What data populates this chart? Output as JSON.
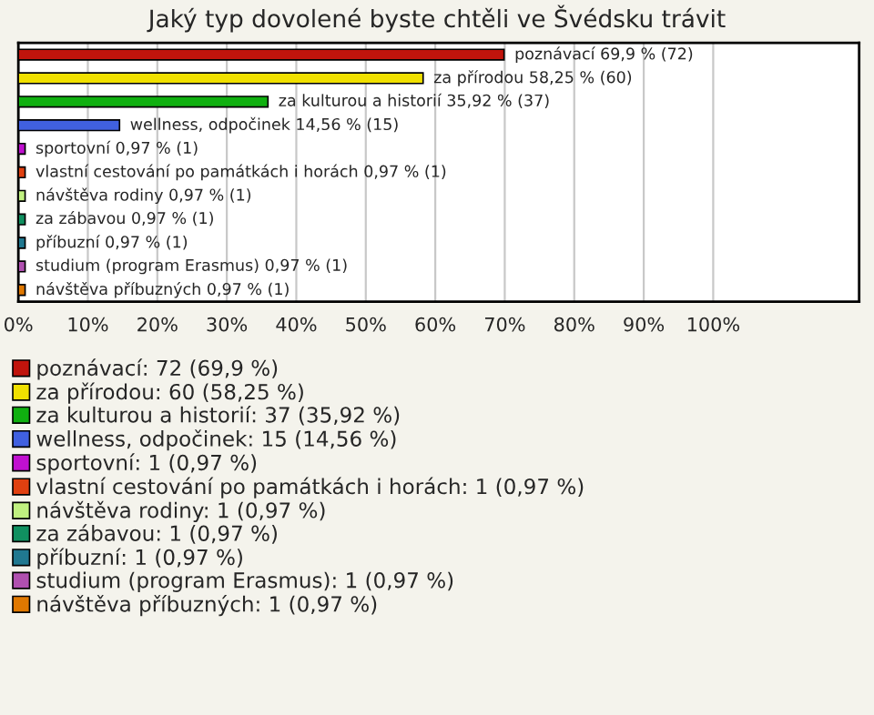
{
  "chart_data": {
    "type": "bar",
    "orientation": "horizontal",
    "title": "Jaký typ dovolené byste chtěli ve Švédsku trávit",
    "categories": [
      null,
      null,
      null,
      null,
      null,
      null,
      null,
      null,
      null,
      null,
      null
    ],
    "series": [
      {
        "name": "poznávací: 72 (69,9 %)",
        "color": "#c0140c",
        "values": [
          69.9,
          null,
          null,
          null,
          null,
          null,
          null,
          null,
          null,
          null,
          null
        ],
        "value_labels": [
          "poznávací 69,9 % (72)",
          null,
          null,
          null,
          null,
          null,
          null,
          null,
          null,
          null,
          null
        ]
      },
      {
        "name": "za přírodou: 60 (58,25 %)",
        "color": "#f0e000",
        "values": [
          null,
          58.25,
          null,
          null,
          null,
          null,
          null,
          null,
          null,
          null,
          null
        ],
        "value_labels": [
          null,
          "za přírodou 58,25 % (60)",
          null,
          null,
          null,
          null,
          null,
          null,
          null,
          null,
          null
        ]
      },
      {
        "name": "za kulturou a historií: 37 (35,92 %)",
        "color": "#10b010",
        "values": [
          null,
          null,
          35.92,
          null,
          null,
          null,
          null,
          null,
          null,
          null,
          null
        ],
        "value_labels": [
          null,
          null,
          "za kulturou a historií 35,92 % (37)",
          null,
          null,
          null,
          null,
          null,
          null,
          null,
          null
        ]
      },
      {
        "name": "wellness, odpočinek: 15 (14,56 %)",
        "color": "#4060e0",
        "values": [
          null,
          null,
          null,
          14.56,
          null,
          null,
          null,
          null,
          null,
          null,
          null
        ],
        "value_labels": [
          null,
          null,
          null,
          "wellness, odpočinek 14,56 % (15)",
          null,
          null,
          null,
          null,
          null,
          null,
          null
        ]
      },
      {
        "name": "sportovní: 1 (0,97 %)",
        "color": "#c010d0",
        "values": [
          null,
          null,
          null,
          null,
          0.97,
          null,
          null,
          null,
          null,
          null,
          null
        ],
        "value_labels": [
          null,
          null,
          null,
          null,
          "sportovní 0,97 % (1)",
          null,
          null,
          null,
          null,
          null,
          null
        ]
      },
      {
        "name": "vlastní cestování po památkách i horách: 1 (0,97 %)",
        "color": "#e04010",
        "values": [
          null,
          null,
          null,
          null,
          null,
          0.97,
          null,
          null,
          null,
          null,
          null
        ],
        "value_labels": [
          null,
          null,
          null,
          null,
          null,
          "vlastní cestování po památkách i horách 0,97 % (1)",
          null,
          null,
          null,
          null,
          null
        ]
      },
      {
        "name": "návštěva rodiny: 1 (0,97 %)",
        "color": "#c0f080",
        "values": [
          null,
          null,
          null,
          null,
          null,
          null,
          0.97,
          null,
          null,
          null,
          null
        ],
        "value_labels": [
          null,
          null,
          null,
          null,
          null,
          null,
          "návštěva rodiny 0,97 % (1)",
          null,
          null,
          null,
          null
        ]
      },
      {
        "name": "za zábavou: 1 (0,97 %)",
        "color": "#109060",
        "values": [
          null,
          null,
          null,
          null,
          null,
          null,
          null,
          0.97,
          null,
          null,
          null
        ],
        "value_labels": [
          null,
          null,
          null,
          null,
          null,
          null,
          null,
          "za zábavou 0,97 % (1)",
          null,
          null,
          null
        ]
      },
      {
        "name": "příbuzní: 1 (0,97 %)",
        "color": "#207890",
        "values": [
          null,
          null,
          null,
          null,
          null,
          null,
          null,
          null,
          0.97,
          null,
          null
        ],
        "value_labels": [
          null,
          null,
          null,
          null,
          null,
          null,
          null,
          null,
          "příbuzní 0,97 % (1)",
          null,
          null
        ]
      },
      {
        "name": "studium (program Erasmus): 1 (0,97 %)",
        "color": "#b050b0",
        "values": [
          null,
          null,
          null,
          null,
          null,
          null,
          null,
          null,
          null,
          0.97,
          null
        ],
        "value_labels": [
          null,
          null,
          null,
          null,
          null,
          null,
          null,
          null,
          null,
          "studium (program Erasmus) 0,97 % (1)",
          null
        ]
      },
      {
        "name": "návštěva příbuzných: 1 (0,97 %)",
        "color": "#e07800",
        "values": [
          null,
          null,
          null,
          null,
          null,
          null,
          null,
          null,
          null,
          null,
          0.97
        ],
        "value_labels": [
          null,
          null,
          null,
          null,
          null,
          null,
          null,
          null,
          null,
          null,
          "návštěva příbuzných 0,97 % (1)"
        ]
      }
    ],
    "xlim": [
      0,
      121
    ],
    "xticks": [
      {
        "value": 0,
        "label": "0%"
      },
      {
        "value": 10,
        "label": "10%"
      },
      {
        "value": 20,
        "label": "20%"
      },
      {
        "value": 30,
        "label": "30%"
      },
      {
        "value": 40,
        "label": "40%"
      },
      {
        "value": 50,
        "label": "50%"
      },
      {
        "value": 60,
        "label": "60%"
      },
      {
        "value": 70,
        "label": "70%"
      },
      {
        "value": 80,
        "label": "80%"
      },
      {
        "value": 90,
        "label": "90%"
      },
      {
        "value": 100,
        "label": "100%"
      }
    ],
    "grid": "x",
    "legend": "bottom",
    "tick_labels": "x"
  }
}
